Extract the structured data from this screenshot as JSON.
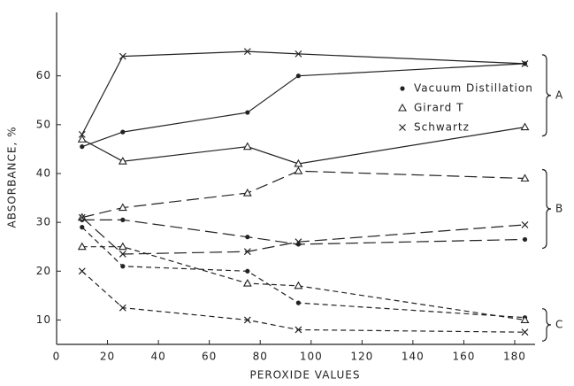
{
  "chart_data": {
    "type": "line",
    "xlabel": "PEROXIDE VALUES",
    "ylabel": "ABSORBANCE, %",
    "x": [
      10,
      26,
      75,
      95,
      184
    ],
    "xlim": [
      0,
      188
    ],
    "xticks": [
      0,
      20,
      40,
      60,
      80,
      100,
      120,
      140,
      160,
      180
    ],
    "ylim": [
      5,
      73
    ],
    "yticks": [
      10,
      20,
      30,
      40,
      50,
      60
    ],
    "color": "#222222",
    "legend": [
      {
        "name": "Vacuum Distillation",
        "marker": "dot"
      },
      {
        "name": "Girard T",
        "marker": "triangle"
      },
      {
        "name": "Schwartz",
        "marker": "cross"
      }
    ],
    "groups": [
      {
        "label": "A",
        "dash": "solid",
        "series": [
          {
            "marker": "dot",
            "values": [
              45.5,
              48.5,
              52.5,
              60,
              62.5
            ]
          },
          {
            "marker": "triangle",
            "values": [
              47,
              42.5,
              45.5,
              42,
              49.5
            ]
          },
          {
            "marker": "cross",
            "values": [
              48,
              64,
              65,
              64.5,
              62.5
            ]
          }
        ]
      },
      {
        "label": "B",
        "dash": "long",
        "series": [
          {
            "marker": "dot",
            "values": [
              30.5,
              30.5,
              27,
              25.5,
              26.5
            ]
          },
          {
            "marker": "triangle",
            "values": [
              31,
              33,
              36,
              40.5,
              39
            ]
          },
          {
            "marker": "cross",
            "values": [
              31,
              23.5,
              24,
              26,
              29.5
            ]
          }
        ]
      },
      {
        "label": "C",
        "dash": "short",
        "series": [
          {
            "marker": "dot",
            "values": [
              29,
              21,
              20,
              13.5,
              10.5
            ]
          },
          {
            "marker": "triangle",
            "values": [
              25,
              25,
              17.5,
              17,
              10
            ]
          },
          {
            "marker": "cross",
            "values": [
              20,
              12.5,
              10,
              8,
              7.5
            ]
          }
        ]
      }
    ]
  }
}
